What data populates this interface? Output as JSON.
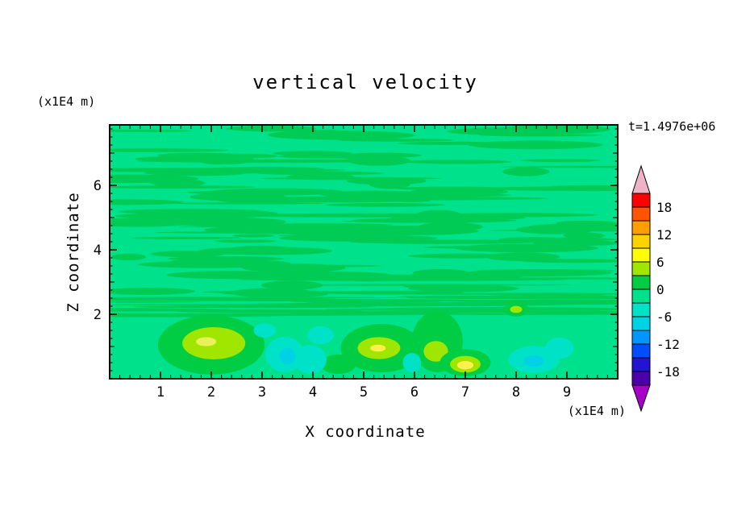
{
  "page": {
    "background": "#FFFFFF"
  },
  "chart_data": {
    "type": "contour",
    "title": "vertical velocity",
    "xlabel": "X coordinate",
    "ylabel": "Z coordinate",
    "x_unit_label": "(x1E4 m)",
    "y_unit_label": "(x1E4 m)",
    "time_annotation": "t=1.4976e+06",
    "x_ticks": [
      1,
      2,
      3,
      4,
      5,
      6,
      7,
      8,
      9
    ],
    "y_ticks": [
      2,
      4,
      6
    ],
    "xlim": [
      0,
      10
    ],
    "ylim": [
      0,
      7.875
    ],
    "grid": false,
    "legend_position": "right-colorbar",
    "colorbar": {
      "tick_labels": [
        "18",
        "12",
        "6",
        "0",
        "-6",
        "-12",
        "-18"
      ],
      "level_step": 3,
      "value_range": [
        -21,
        21
      ],
      "segment_colors_top_to_bottom": [
        "#FF0000",
        "#FF5500",
        "#FF9E00",
        "#FFD200",
        "#FFFF00",
        "#A0E600",
        "#00CC44",
        "#00E18C",
        "#00E2C8",
        "#00D2E6",
        "#0096FF",
        "#004FFF",
        "#2214D2",
        "#4B00AA"
      ],
      "over_arrow_color": "#EFB3C8",
      "under_arrow_color": "#A800C8"
    },
    "field": {
      "background_color": "#00E18C",
      "streak_color": "#00CC55",
      "streak_region_z": [
        2.55,
        7.78
      ],
      "shear_band_z": [
        1.95,
        2.6
      ],
      "streaks": {
        "seed": 1337,
        "count": 110,
        "long_count": 30,
        "band_count": 28
      },
      "features": [
        {
          "x": 2.0,
          "z": 1.05,
          "rx": 1.05,
          "rz": 0.92,
          "color": "#00CC44"
        },
        {
          "x": 2.05,
          "z": 1.1,
          "rx": 0.62,
          "rz": 0.5,
          "color": "#A0E600"
        },
        {
          "x": 1.9,
          "z": 1.15,
          "rx": 0.2,
          "rz": 0.14,
          "color": "#E8F05A"
        },
        {
          "x": 5.35,
          "z": 0.95,
          "rx": 0.8,
          "rz": 0.75,
          "color": "#00CC44"
        },
        {
          "x": 5.3,
          "z": 0.95,
          "rx": 0.42,
          "rz": 0.34,
          "color": "#A0E600"
        },
        {
          "x": 5.28,
          "z": 0.95,
          "rx": 0.15,
          "rz": 0.11,
          "color": "#FFF04B"
        },
        {
          "x": 6.45,
          "z": 1.15,
          "rx": 0.5,
          "rz": 0.95,
          "color": "#00CC44"
        },
        {
          "x": 6.42,
          "z": 0.85,
          "rx": 0.24,
          "rz": 0.32,
          "color": "#A0E600"
        },
        {
          "x": 7.0,
          "z": 0.5,
          "rx": 0.5,
          "rz": 0.42,
          "color": "#00CC44"
        },
        {
          "x": 7.0,
          "z": 0.45,
          "rx": 0.3,
          "rz": 0.26,
          "color": "#A0E600"
        },
        {
          "x": 7.0,
          "z": 0.42,
          "rx": 0.16,
          "rz": 0.13,
          "color": "#FFF04B"
        },
        {
          "x": 4.5,
          "z": 0.45,
          "rx": 0.35,
          "rz": 0.3,
          "color": "#00CC44"
        },
        {
          "x": 8.0,
          "z": 2.15,
          "rx": 0.24,
          "rz": 0.22,
          "color": "#00CC44"
        },
        {
          "x": 8.0,
          "z": 2.15,
          "rx": 0.12,
          "rz": 0.11,
          "color": "#A0E600"
        },
        {
          "x": 3.45,
          "z": 0.75,
          "rx": 0.38,
          "rz": 0.55,
          "color": "#00E2C8"
        },
        {
          "x": 3.95,
          "z": 0.6,
          "rx": 0.32,
          "rz": 0.45,
          "color": "#00E2C8"
        },
        {
          "x": 4.15,
          "z": 1.35,
          "rx": 0.26,
          "rz": 0.28,
          "color": "#00E2C8"
        },
        {
          "x": 3.05,
          "z": 1.5,
          "rx": 0.22,
          "rz": 0.22,
          "color": "#00E2C8"
        },
        {
          "x": 8.35,
          "z": 0.6,
          "rx": 0.5,
          "rz": 0.42,
          "color": "#00E2C8"
        },
        {
          "x": 8.85,
          "z": 0.95,
          "rx": 0.28,
          "rz": 0.33,
          "color": "#00E2C8"
        },
        {
          "x": 5.95,
          "z": 0.5,
          "rx": 0.18,
          "rz": 0.3,
          "color": "#00E2C8"
        },
        {
          "x": 3.5,
          "z": 0.7,
          "rx": 0.16,
          "rz": 0.26,
          "color": "#00D2E6"
        },
        {
          "x": 8.35,
          "z": 0.55,
          "rx": 0.2,
          "rz": 0.18,
          "color": "#00D2E6"
        }
      ]
    }
  }
}
